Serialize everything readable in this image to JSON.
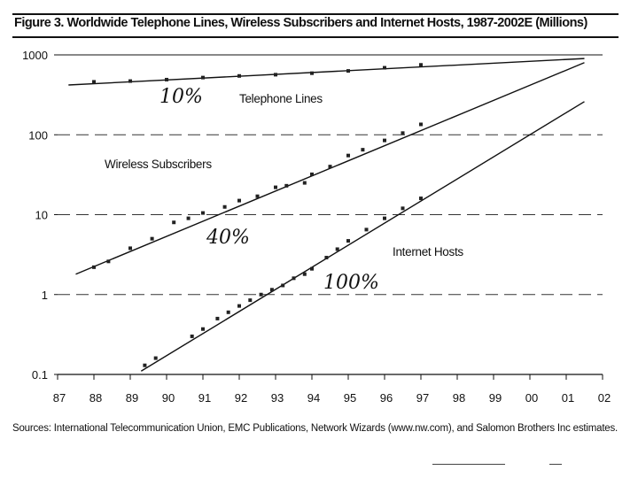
{
  "figure": {
    "title": "Figure 3. Worldwide Telephone Lines, Wireless Subscribers and Internet Hosts, 1987-2002E (Millions)",
    "source": "Sources: International Telecommunication Union, EMC Publications, Network Wizards (www.nw.com), and Salomon Brothers Inc estimates."
  },
  "chart_data": {
    "type": "scatter",
    "scale": "log-y",
    "grid": "dashed horizontal at decades",
    "xlim": [
      87,
      102
    ],
    "ylim": [
      0.1,
      1000
    ],
    "xticks": [
      "87",
      "88",
      "89",
      "90",
      "91",
      "92",
      "93",
      "94",
      "95",
      "96",
      "97",
      "98",
      "99",
      "00",
      "01",
      "02"
    ],
    "yticks": [
      "0.1",
      "1",
      "10",
      "100",
      "1000"
    ],
    "series": [
      {
        "name": "Telephone Lines",
        "growth_annotation": "10%",
        "fit_line": [
          [
            87.3,
            420
          ],
          [
            101.5,
            900
          ]
        ],
        "points": [
          [
            88,
            460
          ],
          [
            89,
            470
          ],
          [
            90,
            490
          ],
          [
            91,
            520
          ],
          [
            92,
            545
          ],
          [
            93,
            565
          ],
          [
            94,
            590
          ],
          [
            95,
            630
          ],
          [
            96,
            690
          ],
          [
            97,
            750
          ]
        ]
      },
      {
        "name": "Wireless Subscribers",
        "growth_annotation": "40%",
        "fit_line": [
          [
            87.5,
            1.8
          ],
          [
            101.5,
            800
          ]
        ],
        "points": [
          [
            88,
            2.2
          ],
          [
            88.4,
            2.6
          ],
          [
            89,
            3.8
          ],
          [
            89.6,
            5.0
          ],
          [
            90.2,
            8.0
          ],
          [
            90.6,
            9.0
          ],
          [
            91,
            10.5
          ],
          [
            91.6,
            12.5
          ],
          [
            92,
            15
          ],
          [
            92.5,
            17
          ],
          [
            93,
            22
          ],
          [
            93.3,
            23
          ],
          [
            93.8,
            25
          ],
          [
            94,
            32
          ],
          [
            94.5,
            40
          ],
          [
            95,
            55
          ],
          [
            95.4,
            65
          ],
          [
            96,
            85
          ],
          [
            96.5,
            105
          ],
          [
            97,
            135
          ]
        ]
      },
      {
        "name": "Internet Hosts",
        "growth_annotation": "100%",
        "fit_line": [
          [
            89.3,
            0.11
          ],
          [
            101.5,
            260
          ]
        ],
        "points": [
          [
            89.4,
            0.13
          ],
          [
            89.7,
            0.16
          ],
          [
            90.7,
            0.3
          ],
          [
            91,
            0.37
          ],
          [
            91.4,
            0.5
          ],
          [
            91.7,
            0.6
          ],
          [
            92,
            0.72
          ],
          [
            92.3,
            0.85
          ],
          [
            92.6,
            1.0
          ],
          [
            92.9,
            1.15
          ],
          [
            93.2,
            1.3
          ],
          [
            93.5,
            1.6
          ],
          [
            93.8,
            1.8
          ],
          [
            94,
            2.1
          ],
          [
            94.4,
            2.9
          ],
          [
            94.7,
            3.7
          ],
          [
            95,
            4.7
          ],
          [
            95.5,
            6.5
          ],
          [
            96,
            9
          ],
          [
            96.5,
            12
          ],
          [
            97,
            16
          ]
        ]
      }
    ]
  }
}
